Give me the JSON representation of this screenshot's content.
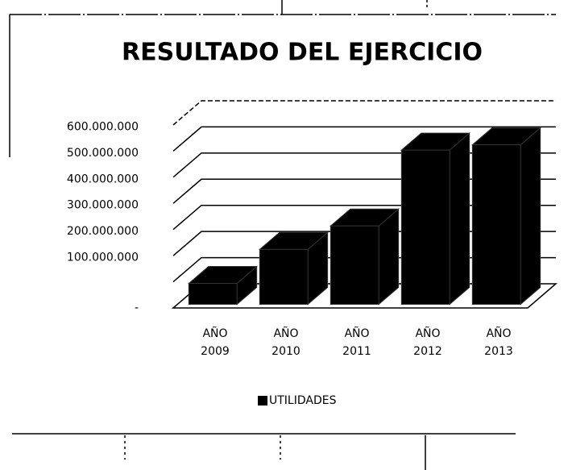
{
  "chart_data": {
    "type": "bar3d",
    "title": "RESULTADO DEL EJERCICIO",
    "categories": [
      "AÑO 2009",
      "AÑO 2010",
      "AÑO 2011",
      "AÑO 2012",
      "AÑO 2013"
    ],
    "series": [
      {
        "name": "UTILIDADES",
        "color": "#000000",
        "values": [
          80000000,
          210000000,
          300000000,
          590000000,
          610000000
        ]
      }
    ],
    "ylim": [
      0,
      700000000
    ],
    "yticks": [
      {
        "value": 0,
        "label": "-"
      },
      {
        "value": 100000000,
        "label": "100.000.000"
      },
      {
        "value": 200000000,
        "label": "200.000.000"
      },
      {
        "value": 300000000,
        "label": "300.000.000"
      },
      {
        "value": 400000000,
        "label": "400.000.000"
      },
      {
        "value": 500000000,
        "label": "500.000.000"
      },
      {
        "value": 600000000,
        "label": "600.000.000"
      }
    ],
    "grid": true,
    "legend": "bottom"
  }
}
